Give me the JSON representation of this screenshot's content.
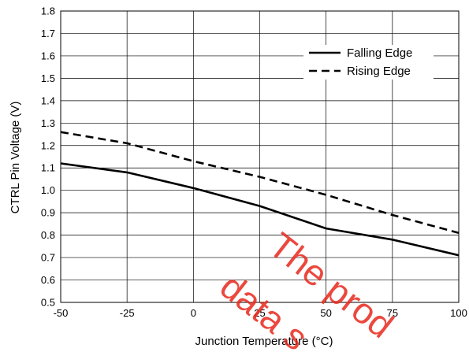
{
  "chart_data": {
    "type": "line",
    "title": "",
    "xlabel": "Junction Temperature (°C)",
    "ylabel": "CTRL Pin Voltage (V)",
    "xlim": [
      -50,
      100
    ],
    "ylim": [
      0.5,
      1.8
    ],
    "x_ticks": [
      "-50",
      "-25",
      "0",
      "25",
      "50",
      "75",
      "100"
    ],
    "y_ticks": [
      "0.5",
      "0.6",
      "0.7",
      "0.8",
      "0.9",
      "1.0",
      "1.1",
      "1.2",
      "1.3",
      "1.4",
      "1.5",
      "1.6",
      "1.7",
      "1.8"
    ],
    "grid": true,
    "legend_position": "top-right",
    "series": [
      {
        "name": "Falling Edge",
        "style": "solid",
        "color": "#000000",
        "x": [
          -50,
          -25,
          0,
          25,
          50,
          75,
          100
        ],
        "y": [
          1.12,
          1.08,
          1.01,
          0.93,
          0.83,
          0.78,
          0.71
        ]
      },
      {
        "name": "Rising Edge",
        "style": "dashed",
        "color": "#000000",
        "x": [
          -50,
          -25,
          0,
          25,
          50,
          75,
          100
        ],
        "y": [
          1.26,
          1.21,
          1.13,
          1.06,
          0.98,
          0.89,
          0.81
        ]
      }
    ]
  },
  "watermark": {
    "line1": "The prod",
    "line2": "data s",
    "color": "#e8281c"
  }
}
